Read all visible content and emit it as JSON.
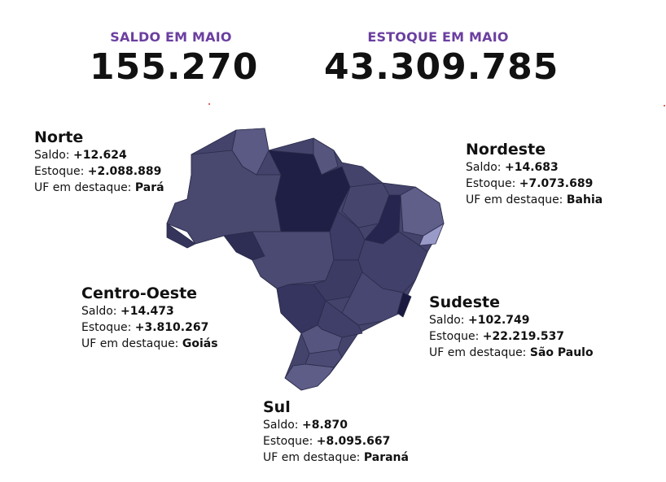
{
  "header": {
    "saldo_label": "SALDO EM MAIO",
    "saldo_value": "155.270",
    "estoque_label": "ESTOQUE EM MAIO",
    "estoque_value": "43.309.785"
  },
  "regions": [
    {
      "name": "Norte",
      "saldo_label": "Saldo:",
      "saldo": "+12.624",
      "estoque_label": "Estoque:",
      "estoque": "+2.088.889",
      "uf_label": "UF em destaque:",
      "uf": "Pará"
    },
    {
      "name": "Nordeste",
      "saldo_label": "Saldo:",
      "saldo": "+14.683",
      "estoque_label": "Estoque:",
      "estoque": "+7.073.689",
      "uf_label": "UF em destaque:",
      "uf": "Bahia"
    },
    {
      "name": "Centro-Oeste",
      "saldo_label": "Saldo:",
      "saldo": "+14.473",
      "estoque_label": "Estoque:",
      "estoque": "+3.810.267",
      "uf_label": "UF em destaque:",
      "uf": "Goiás"
    },
    {
      "name": "Sudeste",
      "saldo_label": "Saldo:",
      "saldo": "+102.749",
      "estoque_label": "Estoque:",
      "estoque": "+22.219.537",
      "uf_label": "UF em destaque:",
      "uf": "São Paulo"
    },
    {
      "name": "Sul",
      "saldo_label": "Saldo:",
      "saldo": "+8.870",
      "estoque_label": "Estoque:",
      "estoque": "+8.095.667",
      "uf_label": "UF em destaque:",
      "uf": "Paraná"
    }
  ]
}
